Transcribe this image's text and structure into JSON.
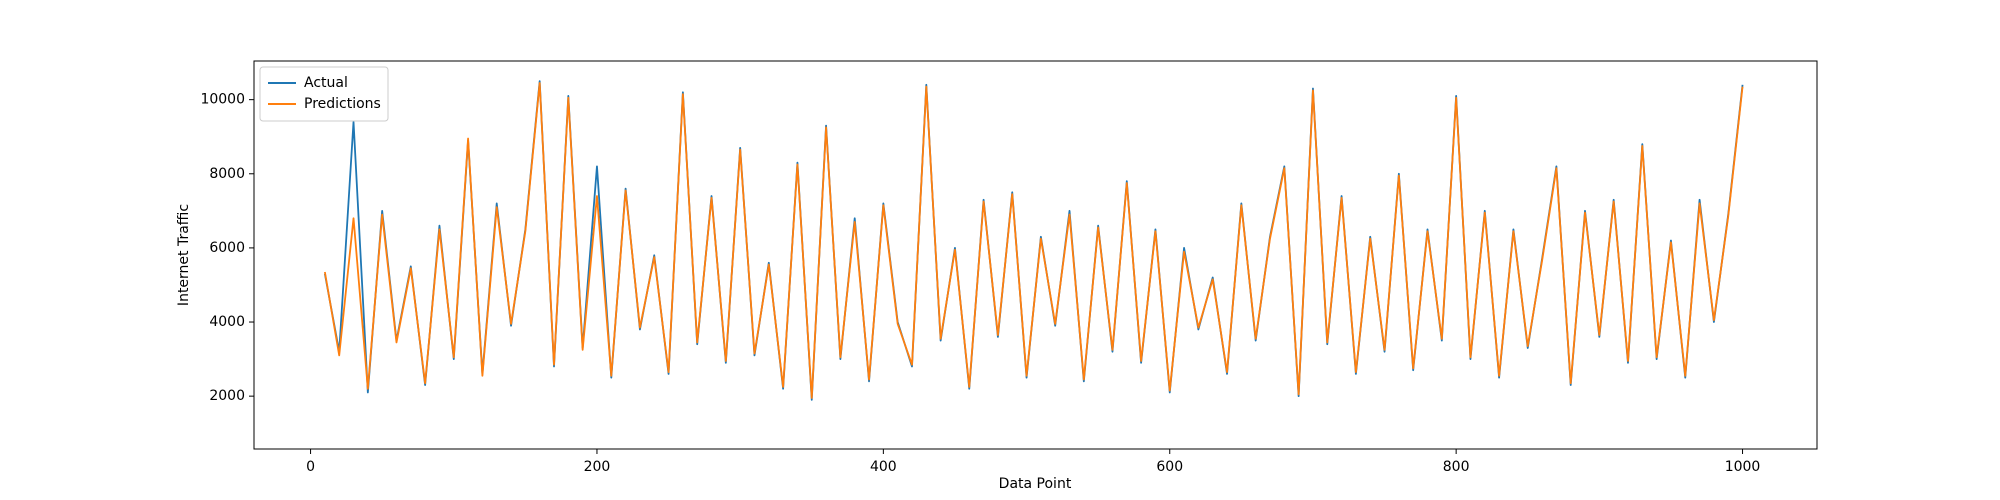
{
  "chart_data": {
    "type": "line",
    "xlabel": "Data Point",
    "ylabel": "Internet Traffic",
    "x": [
      10,
      20,
      30,
      40,
      50,
      60,
      70,
      80,
      90,
      100,
      110,
      120,
      130,
      140,
      150,
      160,
      170,
      180,
      190,
      200,
      210,
      220,
      230,
      240,
      250,
      260,
      270,
      280,
      290,
      300,
      310,
      320,
      330,
      340,
      350,
      360,
      370,
      380,
      390,
      400,
      410,
      420,
      430,
      440,
      450,
      460,
      470,
      480,
      490,
      500,
      510,
      520,
      530,
      540,
      550,
      560,
      570,
      580,
      590,
      600,
      610,
      620,
      630,
      640,
      650,
      660,
      670,
      680,
      690,
      700,
      710,
      720,
      730,
      740,
      750,
      760,
      770,
      780,
      790,
      800,
      810,
      820,
      830,
      840,
      850,
      860,
      870,
      880,
      890,
      900,
      910,
      920,
      930,
      940,
      950,
      960,
      970,
      980,
      990,
      1000
    ],
    "series": [
      {
        "name": "Actual",
        "color": "#1f77b4",
        "values": [
          5300,
          3200,
          9400,
          2100,
          7000,
          3500,
          5500,
          2300,
          6600,
          3000,
          8900,
          2600,
          7200,
          3900,
          6500,
          10500,
          2800,
          10100,
          3300,
          8200,
          2500,
          7600,
          3800,
          5800,
          2600,
          10200,
          3400,
          7400,
          2900,
          8700,
          3100,
          5600,
          2200,
          8300,
          1900,
          9300,
          3000,
          6800,
          2400,
          7200,
          4000,
          2800,
          10400,
          3500,
          6000,
          2200,
          7300,
          3600,
          7500,
          2500,
          6300,
          3900,
          7000,
          2400,
          6600,
          3200,
          7800,
          2900,
          6500,
          2100,
          6000,
          3800,
          5200,
          2600,
          7200,
          3500,
          6300,
          8200,
          2000,
          10300,
          3400,
          7400,
          2600,
          6300,
          3200,
          8000,
          2700,
          6500,
          3500,
          10100,
          3000,
          7000,
          2500,
          6500,
          3300,
          5700,
          8200,
          2300,
          7000,
          3600,
          7300,
          2900,
          8800,
          3000,
          6200,
          2500,
          7300,
          4000,
          6900,
          10400
        ]
      },
      {
        "name": "Predictions",
        "color": "#ff7f0e",
        "values": [
          5350,
          3100,
          6800,
          2200,
          6900,
          3450,
          5450,
          2350,
          6500,
          3050,
          8950,
          2550,
          7100,
          3950,
          6450,
          10450,
          2850,
          10050,
          3250,
          7400,
          2550,
          7550,
          3850,
          5750,
          2650,
          10150,
          3450,
          7350,
          2950,
          8650,
          3150,
          5550,
          2250,
          8250,
          1950,
          9250,
          3050,
          6700,
          2450,
          7150,
          3950,
          2850,
          10350,
          3550,
          5950,
          2250,
          7250,
          3650,
          7450,
          2550,
          6250,
          3950,
          6900,
          2450,
          6550,
          3250,
          7750,
          2950,
          6450,
          2150,
          5900,
          3850,
          5150,
          2650,
          7150,
          3550,
          6250,
          8150,
          2050,
          10250,
          3450,
          7350,
          2650,
          6250,
          3250,
          7950,
          2750,
          6450,
          3550,
          10050,
          3050,
          6950,
          2550,
          6450,
          3350,
          5650,
          8150,
          2350,
          6950,
          3650,
          7250,
          2950,
          8750,
          3050,
          6150,
          2550,
          7200,
          4050,
          6850,
          10350
        ]
      }
    ],
    "xlim": [
      -39.5,
      1052
    ],
    "ylim": [
      574,
      11043
    ],
    "xticks": [
      0,
      200,
      400,
      600,
      800,
      1000
    ],
    "yticks": [
      2000,
      4000,
      6000,
      8000,
      10000
    ],
    "legend": "upper left",
    "grid": false
  }
}
